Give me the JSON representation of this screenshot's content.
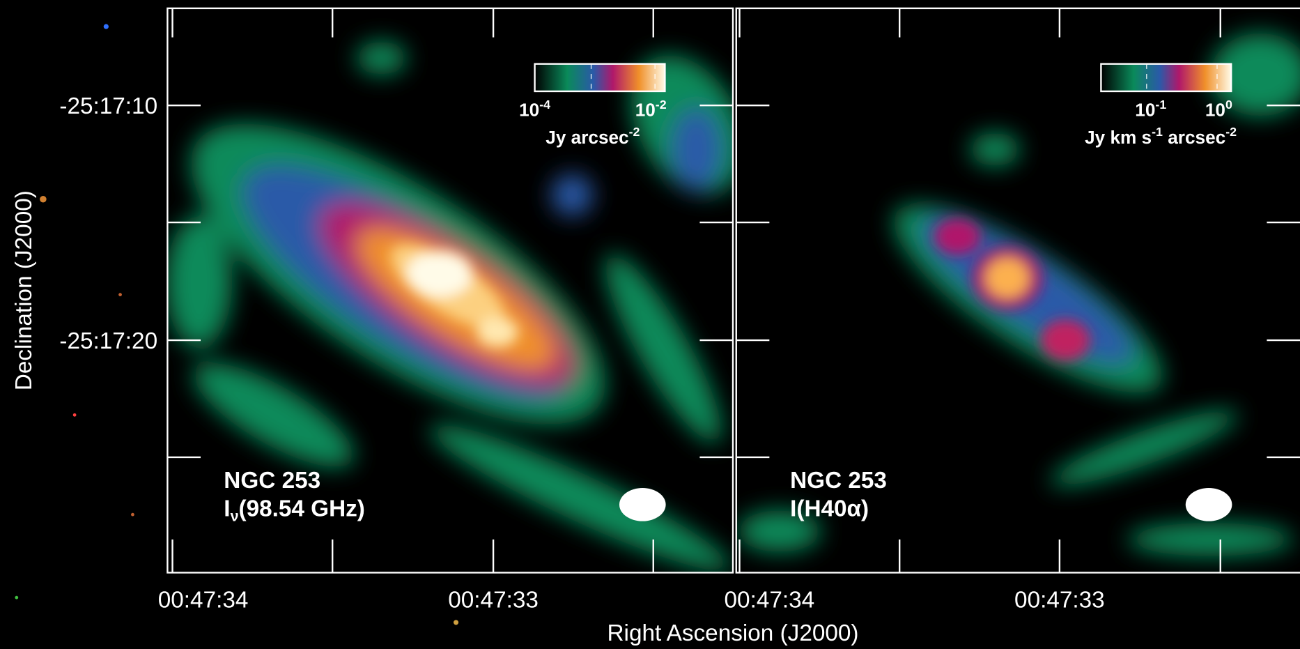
{
  "y_axis": {
    "title": "Declination (J2000)",
    "tick_labels": [
      "-25:17:10",
      "-25:17:20"
    ]
  },
  "x_axis": {
    "title": "Right Ascension (J2000)",
    "panels": [
      {
        "tick_labels": [
          "00:47:34",
          "00:47:33"
        ]
      },
      {
        "tick_labels": [
          "00:47:34",
          "00:47:33"
        ]
      }
    ]
  },
  "panels": [
    {
      "colorbar": {
        "ticks": [
          {
            "base": "10",
            "exponent": "-4"
          },
          {
            "base": "10",
            "exponent": "-2"
          }
        ],
        "unit": [
          "Jy arcsec",
          "-2"
        ]
      },
      "label": {
        "line1": "NGC 253",
        "line2": {
          "symbol": "I",
          "subscript": "ν",
          "text": "(98.54 GHz)"
        }
      }
    },
    {
      "colorbar": {
        "ticks": [
          {
            "base": "10",
            "exponent": "-1"
          },
          {
            "base": "10",
            "exponent": "0"
          }
        ],
        "unit": [
          "Jy km s",
          "-1",
          " arcsec",
          "-2"
        ]
      },
      "label": {
        "line1": "NGC 253",
        "line2": "I(H40α)"
      }
    }
  ]
}
